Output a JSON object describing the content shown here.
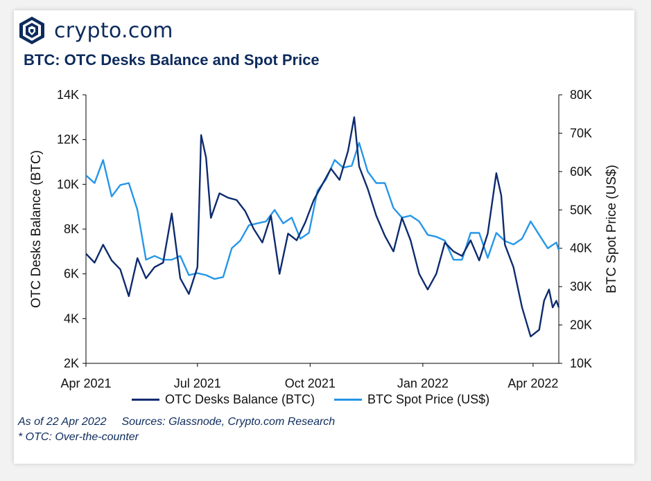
{
  "brand": {
    "name": "crypto.com",
    "icon": "crypto-com-lion-shield-icon"
  },
  "chart_title": "BTC: OTC Desks Balance and Spot Price",
  "footnotes": {
    "as_of": "As of 22 Apr 2022",
    "sources": "Sources: Glassnode, Crypto.com Research",
    "otc_note": "* OTC: Over-the-counter"
  },
  "colors": {
    "balance": "#0d2b6e",
    "price": "#2596e8",
    "text": "#0d2b5c"
  },
  "chart_data": {
    "type": "line",
    "title": "BTC: OTC Desks Balance and Spot Price",
    "xlabel": "",
    "x_ticks": [
      "Apr 2021",
      "Jul 2021",
      "Oct 2021",
      "Jan 2022",
      "Apr 2022"
    ],
    "x_range": [
      "2021-04-01",
      "2022-04-22"
    ],
    "y_left": {
      "label": "OTC Desks Balance (BTC)",
      "ticks": [
        "2K",
        "4K",
        "6K",
        "8K",
        "10K",
        "12K",
        "14K"
      ],
      "range": [
        2000,
        14000
      ]
    },
    "y_right": {
      "label": "BTC Spot Price (US$)",
      "ticks": [
        "10K",
        "20K",
        "30K",
        "40K",
        "50K",
        "60K",
        "70K",
        "80K"
      ],
      "range": [
        10000,
        80000
      ]
    },
    "grid": false,
    "legend_position": "bottom",
    "series": [
      {
        "name": "OTC Desks Balance (BTC)",
        "axis": "left",
        "points": [
          [
            "2021-04-01",
            6900
          ],
          [
            "2021-04-08",
            6500
          ],
          [
            "2021-04-15",
            7300
          ],
          [
            "2021-04-22",
            6600
          ],
          [
            "2021-04-29",
            6200
          ],
          [
            "2021-05-06",
            5000
          ],
          [
            "2021-05-13",
            6700
          ],
          [
            "2021-05-20",
            5800
          ],
          [
            "2021-05-27",
            6300
          ],
          [
            "2021-06-03",
            6500
          ],
          [
            "2021-06-10",
            8700
          ],
          [
            "2021-06-17",
            5800
          ],
          [
            "2021-06-24",
            5100
          ],
          [
            "2021-07-01",
            6300
          ],
          [
            "2021-07-04",
            12200
          ],
          [
            "2021-07-08",
            11200
          ],
          [
            "2021-07-12",
            8500
          ],
          [
            "2021-07-19",
            9600
          ],
          [
            "2021-07-26",
            9400
          ],
          [
            "2021-08-02",
            9300
          ],
          [
            "2021-08-09",
            8800
          ],
          [
            "2021-08-16",
            8000
          ],
          [
            "2021-08-23",
            7400
          ],
          [
            "2021-08-30",
            8600
          ],
          [
            "2021-09-06",
            6000
          ],
          [
            "2021-09-13",
            7800
          ],
          [
            "2021-09-20",
            7500
          ],
          [
            "2021-09-27",
            8300
          ],
          [
            "2021-10-04",
            9300
          ],
          [
            "2021-10-11",
            10000
          ],
          [
            "2021-10-18",
            10700
          ],
          [
            "2021-10-25",
            10200
          ],
          [
            "2021-11-01",
            11500
          ],
          [
            "2021-11-06",
            13000
          ],
          [
            "2021-11-10",
            10800
          ],
          [
            "2021-11-17",
            9800
          ],
          [
            "2021-11-24",
            8600
          ],
          [
            "2021-12-01",
            7700
          ],
          [
            "2021-12-08",
            7000
          ],
          [
            "2021-12-15",
            8500
          ],
          [
            "2021-12-22",
            7500
          ],
          [
            "2021-12-29",
            6000
          ],
          [
            "2022-01-05",
            5300
          ],
          [
            "2022-01-12",
            6000
          ],
          [
            "2022-01-19",
            7400
          ],
          [
            "2022-01-26",
            7000
          ],
          [
            "2022-02-02",
            6800
          ],
          [
            "2022-02-09",
            7500
          ],
          [
            "2022-02-16",
            6600
          ],
          [
            "2022-02-23",
            7800
          ],
          [
            "2022-03-02",
            10500
          ],
          [
            "2022-03-06",
            9500
          ],
          [
            "2022-03-09",
            7300
          ],
          [
            "2022-03-16",
            6300
          ],
          [
            "2022-03-23",
            4500
          ],
          [
            "2022-03-30",
            3200
          ],
          [
            "2022-04-06",
            3500
          ],
          [
            "2022-04-10",
            4800
          ],
          [
            "2022-04-14",
            5300
          ],
          [
            "2022-04-17",
            4500
          ],
          [
            "2022-04-20",
            4800
          ],
          [
            "2022-04-22",
            4500
          ]
        ]
      },
      {
        "name": "BTC Spot Price (US$)",
        "axis": "right",
        "points": [
          [
            "2021-04-01",
            59000
          ],
          [
            "2021-04-08",
            57000
          ],
          [
            "2021-04-15",
            63000
          ],
          [
            "2021-04-22",
            53500
          ],
          [
            "2021-04-29",
            56500
          ],
          [
            "2021-05-06",
            57000
          ],
          [
            "2021-05-13",
            50000
          ],
          [
            "2021-05-20",
            37000
          ],
          [
            "2021-05-27",
            38000
          ],
          [
            "2021-06-03",
            37000
          ],
          [
            "2021-06-10",
            37000
          ],
          [
            "2021-06-17",
            38000
          ],
          [
            "2021-06-24",
            33000
          ],
          [
            "2021-07-01",
            33500
          ],
          [
            "2021-07-08",
            33000
          ],
          [
            "2021-07-15",
            32000
          ],
          [
            "2021-07-22",
            32500
          ],
          [
            "2021-07-29",
            40000
          ],
          [
            "2021-08-05",
            42000
          ],
          [
            "2021-08-12",
            46000
          ],
          [
            "2021-08-19",
            46500
          ],
          [
            "2021-08-26",
            47000
          ],
          [
            "2021-09-02",
            50000
          ],
          [
            "2021-09-09",
            46500
          ],
          [
            "2021-09-16",
            48000
          ],
          [
            "2021-09-23",
            42500
          ],
          [
            "2021-09-30",
            44000
          ],
          [
            "2021-10-07",
            55000
          ],
          [
            "2021-10-14",
            58000
          ],
          [
            "2021-10-21",
            63000
          ],
          [
            "2021-10-28",
            61000
          ],
          [
            "2021-11-04",
            61500
          ],
          [
            "2021-11-10",
            67500
          ],
          [
            "2021-11-17",
            60000
          ],
          [
            "2021-11-24",
            57000
          ],
          [
            "2021-12-01",
            57000
          ],
          [
            "2021-12-08",
            50500
          ],
          [
            "2021-12-15",
            48000
          ],
          [
            "2021-12-22",
            48500
          ],
          [
            "2021-12-29",
            47000
          ],
          [
            "2022-01-05",
            43500
          ],
          [
            "2022-01-12",
            43000
          ],
          [
            "2022-01-19",
            42000
          ],
          [
            "2022-01-26",
            37000
          ],
          [
            "2022-02-02",
            37000
          ],
          [
            "2022-02-09",
            44000
          ],
          [
            "2022-02-16",
            44000
          ],
          [
            "2022-02-23",
            37500
          ],
          [
            "2022-03-02",
            44000
          ],
          [
            "2022-03-09",
            41900
          ],
          [
            "2022-03-16",
            41000
          ],
          [
            "2022-03-23",
            42500
          ],
          [
            "2022-03-30",
            47000
          ],
          [
            "2022-04-06",
            43500
          ],
          [
            "2022-04-13",
            40000
          ],
          [
            "2022-04-20",
            41500
          ],
          [
            "2022-04-22",
            39500
          ]
        ]
      }
    ]
  }
}
